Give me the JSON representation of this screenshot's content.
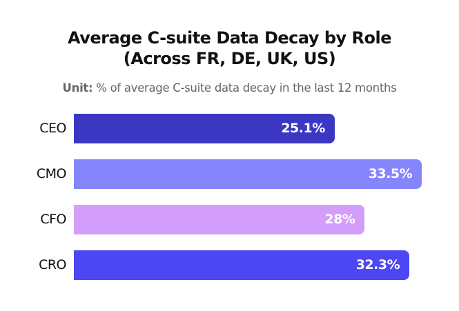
{
  "chart_data": {
    "type": "bar",
    "orientation": "horizontal",
    "title_line1": "Average C-suite Data Decay by Role",
    "title_line2": "(Across FR, DE, UK, US)",
    "subtitle_label": "Unit:",
    "subtitle_text": " % of average C-suite data decay in the last 12 months",
    "categories": [
      "CEO",
      "CMO",
      "CFO",
      "CRO"
    ],
    "values": [
      25.1,
      33.5,
      28,
      32.3
    ],
    "data_labels": [
      "25.1%",
      "33.5%",
      "28%",
      "32.3%"
    ],
    "colors": [
      "#3b37c2",
      "#8585fc",
      "#d39dfa",
      "#4c46f3"
    ],
    "grid": false,
    "legend": "none"
  }
}
